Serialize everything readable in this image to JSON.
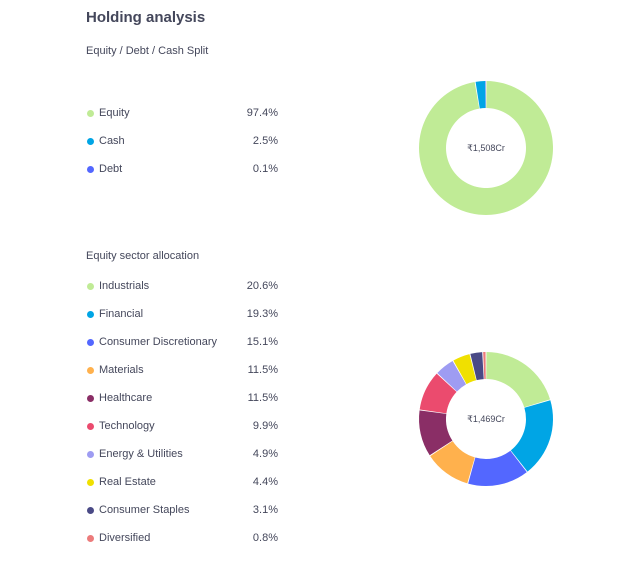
{
  "section": {
    "title": "Holding analysis"
  },
  "split": {
    "subtitle": "Equity / Debt / Cash Split",
    "center_label": "₹1,508Cr",
    "items": [
      {
        "label": "Equity",
        "value": "97.4%",
        "percent": 97.4,
        "color": "#c0eb96"
      },
      {
        "label": "Cash",
        "value": "2.5%",
        "percent": 2.5,
        "color": "#00a5e5"
      },
      {
        "label": "Debt",
        "value": "0.1%",
        "percent": 0.1,
        "color": "#5367ff"
      }
    ]
  },
  "sectors": {
    "subtitle": "Equity sector allocation",
    "center_label": "₹1,469Cr",
    "items": [
      {
        "label": "Industrials",
        "value": "20.6%",
        "percent": 20.6,
        "color": "#c0eb96"
      },
      {
        "label": "Financial",
        "value": "19.3%",
        "percent": 19.3,
        "color": "#00a5e5"
      },
      {
        "label": "Consumer Discretionary",
        "value": "15.1%",
        "percent": 15.1,
        "color": "#5367ff"
      },
      {
        "label": "Materials",
        "value": "11.5%",
        "percent": 11.5,
        "color": "#ffb14d"
      },
      {
        "label": "Healthcare",
        "value": "11.5%",
        "percent": 11.5,
        "color": "#8a2e66"
      },
      {
        "label": "Technology",
        "value": "9.9%",
        "percent": 9.9,
        "color": "#eb4b6e"
      },
      {
        "label": "Energy & Utilities",
        "value": "4.9%",
        "percent": 4.9,
        "color": "#9e9cf2"
      },
      {
        "label": "Real Estate",
        "value": "4.4%",
        "percent": 4.4,
        "color": "#f0e000"
      },
      {
        "label": "Consumer Staples",
        "value": "3.1%",
        "percent": 3.1,
        "color": "#4a4a86"
      },
      {
        "label": "Diversified",
        "value": "0.8%",
        "percent": 0.8,
        "color": "#ec7b7b"
      }
    ]
  }
}
